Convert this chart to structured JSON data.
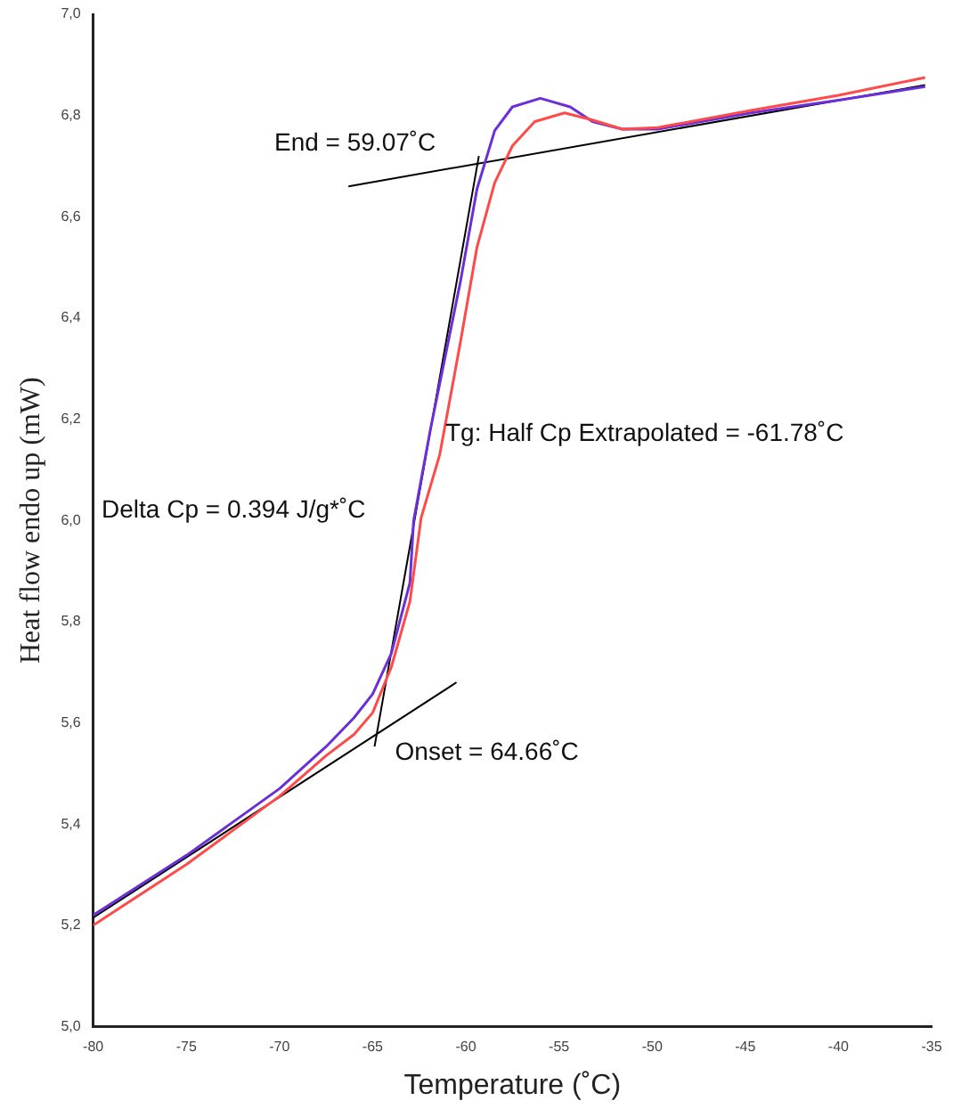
{
  "chart_data": {
    "type": "line",
    "xlabel": "Temperature (˚C)",
    "ylabel": "Heat flow endo up (mW)",
    "xlim": [
      -80,
      -35
    ],
    "xticks": [
      -80,
      -75,
      -70,
      -65,
      -60,
      -55,
      -50,
      -45,
      -40,
      -35
    ],
    "ylim": [
      5,
      7
    ],
    "yticks": [
      {
        "value": 5,
        "label": "5,0"
      },
      {
        "value": 5.2,
        "label": "5,2"
      },
      {
        "value": 5.4,
        "label": "5,4"
      },
      {
        "value": 5.6,
        "label": "5,6"
      },
      {
        "value": 5.8,
        "label": "5,8"
      },
      {
        "value": 6,
        "label": "6,0"
      },
      {
        "value": 6.2,
        "label": "6,2"
      },
      {
        "value": 6.4,
        "label": "6,4"
      },
      {
        "value": 6.6,
        "label": "6,6"
      },
      {
        "value": 6.8,
        "label": "6,8"
      },
      {
        "value": 7,
        "label": "7,0"
      }
    ],
    "grid": false,
    "legend": false,
    "marker": "none",
    "line_style": "solid",
    "series": [
      {
        "color": "#ff4a4a",
        "x": [
          -80,
          -75,
          -70,
          -67.5,
          -66,
          -65,
          -64,
          -63,
          -62.4,
          -61.4,
          -60.3,
          -59.4,
          -58.45,
          -57.5,
          -56.3,
          -54.7,
          -53.2,
          -51.6,
          -49.7,
          -44.7,
          -40,
          -35.35
        ],
        "values": [
          5.2,
          5.32,
          5.455,
          5.535,
          5.577,
          5.62,
          5.71,
          5.84,
          6.005,
          6.13,
          6.35,
          6.54,
          6.667,
          6.74,
          6.788,
          6.805,
          6.791,
          6.773,
          6.776,
          6.81,
          6.84,
          6.875
        ]
      },
      {
        "color": "#6a2fd8",
        "x": [
          -80,
          -75,
          -70,
          -67.5,
          -66,
          -65,
          -64,
          -63,
          -62.8,
          -61.9,
          -60.3,
          -59.4,
          -58.45,
          -57.5,
          -56,
          -54.4,
          -53.2,
          -51.6,
          -49.7,
          -44.7,
          -40,
          -35.35
        ],
        "values": [
          5.22,
          5.338,
          5.47,
          5.553,
          5.61,
          5.657,
          5.737,
          5.877,
          6,
          6.18,
          6.47,
          6.655,
          6.77,
          6.817,
          6.834,
          6.817,
          6.788,
          6.773,
          6.773,
          6.805,
          6.83,
          6.857
        ]
      },
      {
        "color": "#000000",
        "x": [
          -80,
          -60.5
        ],
        "values": [
          5.215,
          5.68
        ]
      },
      {
        "color": "#000000",
        "x": [
          -66.3,
          -35.35
        ],
        "values": [
          6.66,
          6.86
        ]
      },
      {
        "color": "#000000",
        "x": [
          -64.9,
          -59.3
        ],
        "values": [
          5.553,
          6.72
        ]
      }
    ],
    "annotations": [
      "End = 59.07˚C",
      {
        "text": "Tg: Half Cp Extrapolated = -61.78˚C",
        "x": -61.1,
        "y": 6.17
      },
      "Delta Cp = 0.394 J/g*˚C",
      "Onset = 64.66˚C"
    ]
  }
}
